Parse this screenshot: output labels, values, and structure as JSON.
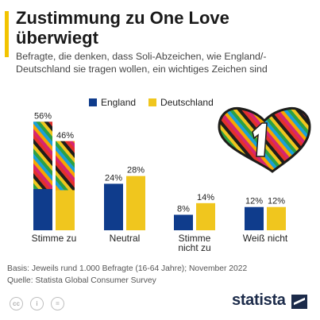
{
  "title": "Zustimmung zu One Love überwiegt",
  "subtitle": "Befragte, die denken, dass Soli-Abzeichen, wie England/-Deutschland sie tragen wollen, ein wichtiges Zeichen sind",
  "source_lines": [
    "Basis: Jeweils rund 1.000 Befragte (16-64 Jahre); November 2022",
    "Quelle: Statista Global Consumer Survey"
  ],
  "brand": "statista",
  "colors": {
    "england": "#0f3c8c",
    "deutschland": "#f0c61e",
    "accent": "#f2c400"
  },
  "chart_data": {
    "type": "bar",
    "categories": [
      "Stimme zu",
      "Neutral",
      "Stimme\nnicht zu",
      "Weiß nicht"
    ],
    "series": [
      {
        "name": "England",
        "values": [
          56,
          24,
          8,
          12
        ]
      },
      {
        "name": "Deutschland",
        "values": [
          46,
          28,
          14,
          12
        ]
      }
    ],
    "value_suffix": "%",
    "ylim": [
      0,
      56
    ],
    "grid": false,
    "legend": "top",
    "highlight": "first category bars filled with rainbow One Love stripes"
  },
  "icons": [
    "one-love-heart-icon",
    "creative-commons-icon",
    "attribution-icon",
    "equals-icon"
  ]
}
